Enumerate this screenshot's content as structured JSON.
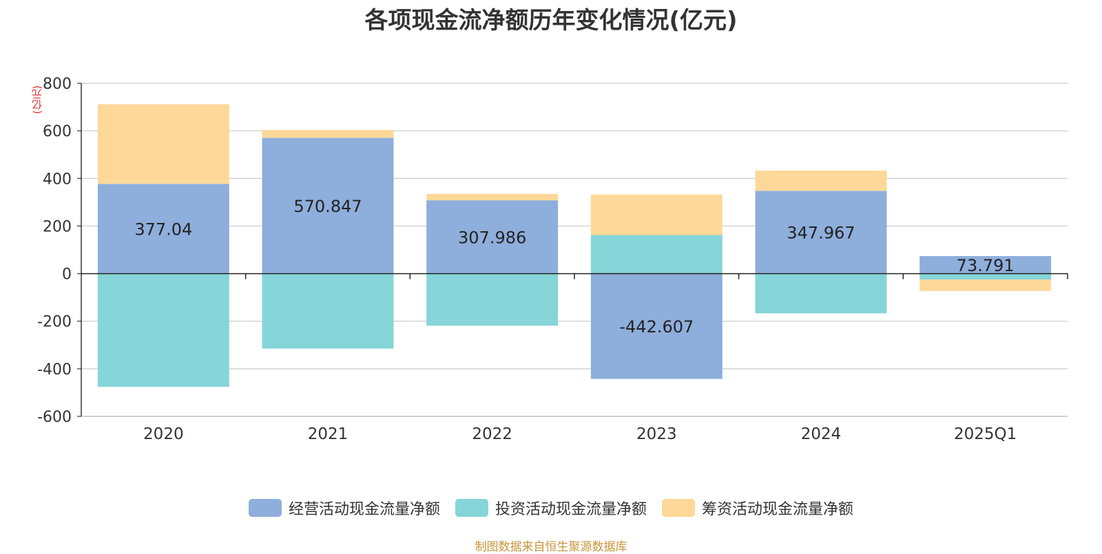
{
  "chart_data": {
    "type": "bar",
    "stacked": true,
    "title": "各项现金流净额历年变化情况(亿元)",
    "ylabel": "(亿元)",
    "categories": [
      "2020",
      "2021",
      "2022",
      "2023",
      "2024",
      "2025Q1"
    ],
    "ylim": [
      -600,
      800
    ],
    "yticks": [
      800,
      600,
      400,
      200,
      0,
      -200,
      -400,
      -600
    ],
    "grid": true,
    "legend_position": "bottom",
    "series": [
      {
        "name": "经营活动现金流量净额",
        "color": "#8eaedb",
        "values": [
          377.04,
          570.847,
          307.986,
          -442.607,
          347.967,
          73.791
        ],
        "data_labels": [
          "377.04",
          "570.847",
          "307.986",
          "-442.607",
          "347.967",
          "73.791"
        ]
      },
      {
        "name": "投资活动现金流量净额",
        "color": "#86d5d8",
        "values": [
          -476,
          -315,
          -219,
          162,
          -167,
          -25
        ]
      },
      {
        "name": "筹资活动现金流量净额",
        "color": "#fed898",
        "values": [
          335,
          33,
          27,
          170,
          85,
          -48
        ]
      }
    ]
  },
  "source": "制图数据来自恒生聚源数据库"
}
